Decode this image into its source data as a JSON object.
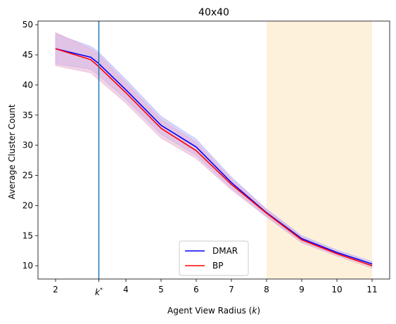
{
  "chart_data": {
    "type": "line",
    "title": "40x40",
    "xlabel": "Agent View Radius (k)",
    "xlabel_main": "Agent View Radius (",
    "xlabel_var": "k",
    "xlabel_end": ")",
    "ylabel": "Average Cluster Count",
    "xlim": [
      1.5,
      11.5
    ],
    "ylim": [
      7.8,
      50.6
    ],
    "x_ticks": [
      2,
      3.23,
      4,
      5,
      6,
      7,
      8,
      9,
      10,
      11
    ],
    "x_tick_labels": [
      "2",
      "k*",
      "4",
      "5",
      "6",
      "7",
      "8",
      "9",
      "10",
      "11"
    ],
    "y_ticks": [
      10,
      15,
      20,
      25,
      30,
      35,
      40,
      45,
      50
    ],
    "y_tick_labels": [
      "10",
      "15",
      "20",
      "25",
      "30",
      "35",
      "40",
      "45",
      "50"
    ],
    "vline": {
      "x": 3.23,
      "label": "k*",
      "color": "#1f77b4"
    },
    "shaded_region": {
      "x_start": 8,
      "x_end": 11,
      "color": "#fdf1dc"
    },
    "x": [
      2,
      3,
      3.2,
      4,
      5,
      6,
      7,
      8,
      9,
      10,
      11
    ],
    "series": [
      {
        "name": "DMAR",
        "color": "#0000ff",
        "band_color": "#b7b7ff",
        "values": [
          46.0,
          44.6,
          43.7,
          39.2,
          33.3,
          29.7,
          23.8,
          18.8,
          14.5,
          12.2,
          10.3
        ],
        "lower": [
          43.5,
          42.6,
          41.7,
          37.6,
          31.8,
          28.3,
          22.9,
          18.2,
          14.0,
          11.8,
          10.0
        ],
        "upper": [
          48.5,
          46.4,
          45.6,
          40.9,
          34.8,
          31.0,
          24.7,
          19.4,
          15.0,
          12.6,
          10.7
        ]
      },
      {
        "name": "BP",
        "color": "#ff0000",
        "band_color": "#e7b3d0",
        "values": [
          46.0,
          44.2,
          43.2,
          38.7,
          32.8,
          29.1,
          23.5,
          18.7,
          14.3,
          12.0,
          10.0
        ],
        "lower": [
          43.2,
          42.0,
          41.0,
          37.0,
          31.2,
          27.8,
          22.6,
          18.1,
          13.8,
          11.6,
          9.6
        ],
        "upper": [
          48.7,
          46.0,
          45.2,
          40.4,
          34.3,
          30.5,
          24.4,
          19.3,
          14.8,
          12.4,
          10.4
        ]
      }
    ],
    "legend": {
      "position": "lower-center",
      "entries": [
        "DMAR",
        "BP"
      ]
    },
    "grid": false
  }
}
